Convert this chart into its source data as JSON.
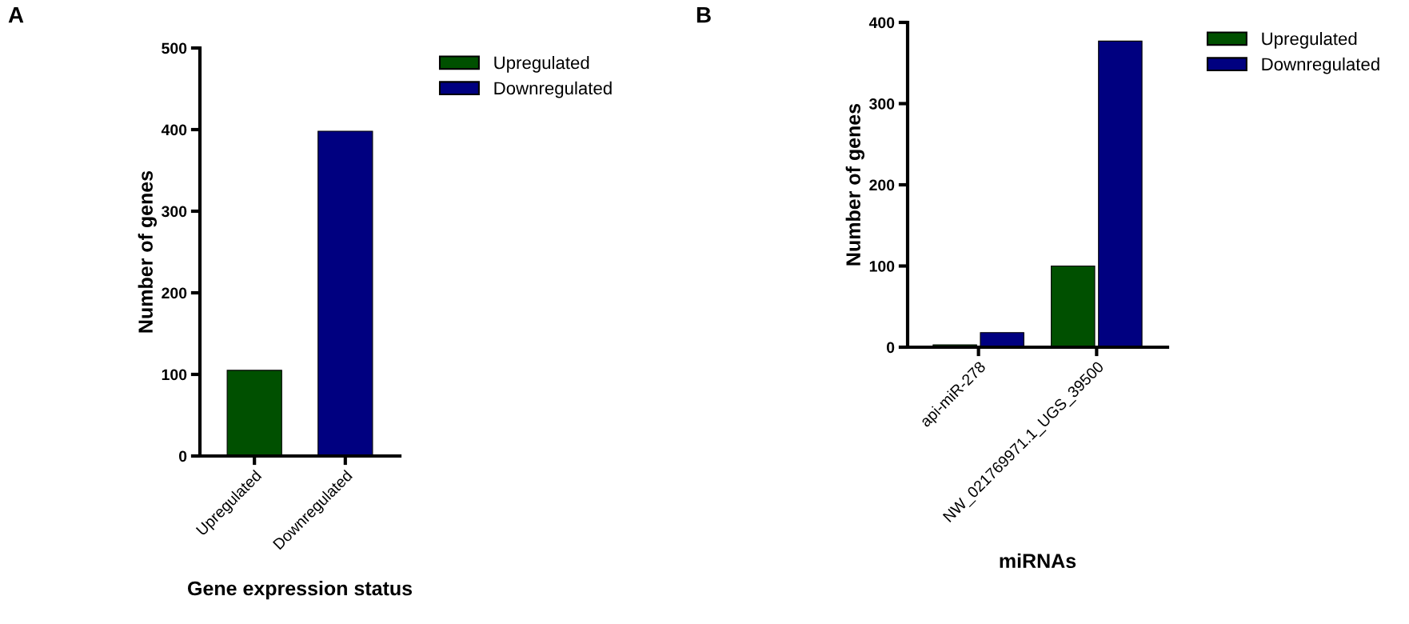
{
  "chart_data": [
    {
      "type": "bar",
      "stacked": true,
      "annotations": [
        "A"
      ],
      "xlabel": "Gene expression status",
      "ylabel": "Number of genes",
      "categories": [
        "Upregulated",
        "Downregulated"
      ],
      "series": [
        {
          "name": "Upregulated",
          "color": "#005000",
          "values": [
            105,
            null
          ]
        },
        {
          "name": "Downregulated",
          "color": "#000080",
          "values": [
            null,
            398
          ]
        }
      ],
      "ylim": [
        0,
        500
      ],
      "yticks": [
        0,
        100,
        200,
        300,
        400,
        500
      ],
      "legend": "right",
      "grid": false
    },
    {
      "type": "bar",
      "annotations": [
        "B"
      ],
      "xlabel": "miRNAs",
      "ylabel": "Number of genes",
      "categories": [
        "api-miR-278",
        "NW_021769971.1_UGS_39500"
      ],
      "series": [
        {
          "name": "Upregulated",
          "color": "#005000",
          "values": [
            3,
            100
          ]
        },
        {
          "name": "Downregulated",
          "color": "#000080",
          "values": [
            18,
            377
          ]
        }
      ],
      "ylim": [
        0,
        400
      ],
      "yticks": [
        0,
        100,
        200,
        300,
        400
      ],
      "legend": "right",
      "grid": false
    }
  ]
}
